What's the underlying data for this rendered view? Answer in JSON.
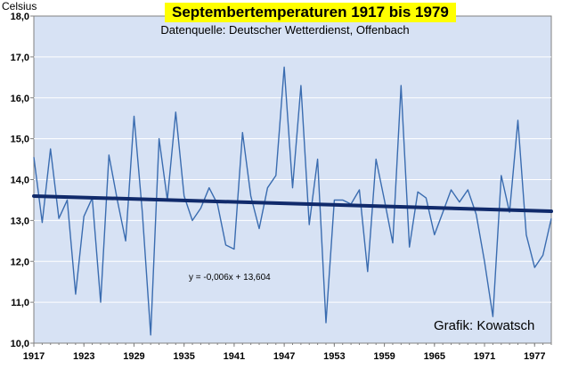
{
  "chart_data": {
    "type": "line",
    "title": "Septembertemperaturen 1917 bis 1979",
    "subtitle": "Datenquelle: Deutscher Wetterdienst, Offenbach",
    "ylabel": "Celsius",
    "xlabel": "",
    "credit": "Grafik: Kowatsch",
    "trend_equation": "y = -0,006x + 13,604",
    "trend": {
      "slope": -0.006,
      "intercept": 13.604
    },
    "ylim": [
      10,
      18
    ],
    "xlim": [
      1917,
      1979
    ],
    "y_ticks": [
      "10,0",
      "11,0",
      "12,0",
      "13,0",
      "14,0",
      "15,0",
      "16,0",
      "17,0",
      "18,0"
    ],
    "x_ticks": [
      "1917",
      "1923",
      "1929",
      "1935",
      "1941",
      "1947",
      "1953",
      "1959",
      "1965",
      "1971",
      "1977"
    ],
    "grid": true,
    "legend": "none",
    "colors": {
      "series": "#3a6cb0",
      "trend": "#102a6b",
      "plot_bg": "#d7e2f4",
      "grid": "#ffffff"
    },
    "series": [
      {
        "years": [
          1917,
          1918,
          1919,
          1920,
          1921,
          1922,
          1923,
          1924,
          1925,
          1926,
          1927,
          1928,
          1929,
          1930,
          1931,
          1932,
          1933,
          1934,
          1935,
          1936,
          1937,
          1938,
          1939,
          1940,
          1941,
          1942,
          1943,
          1944,
          1945,
          1946,
          1947,
          1948,
          1949,
          1950,
          1951,
          1952,
          1953,
          1954,
          1955,
          1956,
          1957,
          1958,
          1959,
          1960,
          1961,
          1962,
          1963,
          1964,
          1965,
          1966,
          1967,
          1968,
          1969,
          1970,
          1971,
          1972,
          1973,
          1974,
          1975,
          1976,
          1977,
          1978,
          1979
        ],
        "values": [
          14.55,
          12.95,
          14.75,
          13.05,
          13.5,
          11.2,
          13.1,
          13.55,
          11.0,
          14.6,
          13.5,
          12.5,
          15.55,
          13.2,
          10.2,
          15.0,
          13.5,
          15.65,
          13.6,
          13.0,
          13.3,
          13.8,
          13.4,
          12.4,
          12.3,
          15.15,
          13.6,
          12.8,
          13.8,
          14.1,
          16.75,
          13.8,
          16.3,
          12.9,
          14.5,
          10.5,
          13.5,
          13.5,
          13.4,
          13.75,
          11.75,
          14.5,
          13.5,
          12.45,
          16.3,
          12.35,
          13.7,
          13.55,
          12.65,
          13.2,
          13.75,
          13.45,
          13.75,
          13.15,
          12.0,
          10.65,
          14.1,
          13.2,
          15.45,
          12.65,
          11.85,
          12.15,
          13.05
        ]
      }
    ]
  }
}
